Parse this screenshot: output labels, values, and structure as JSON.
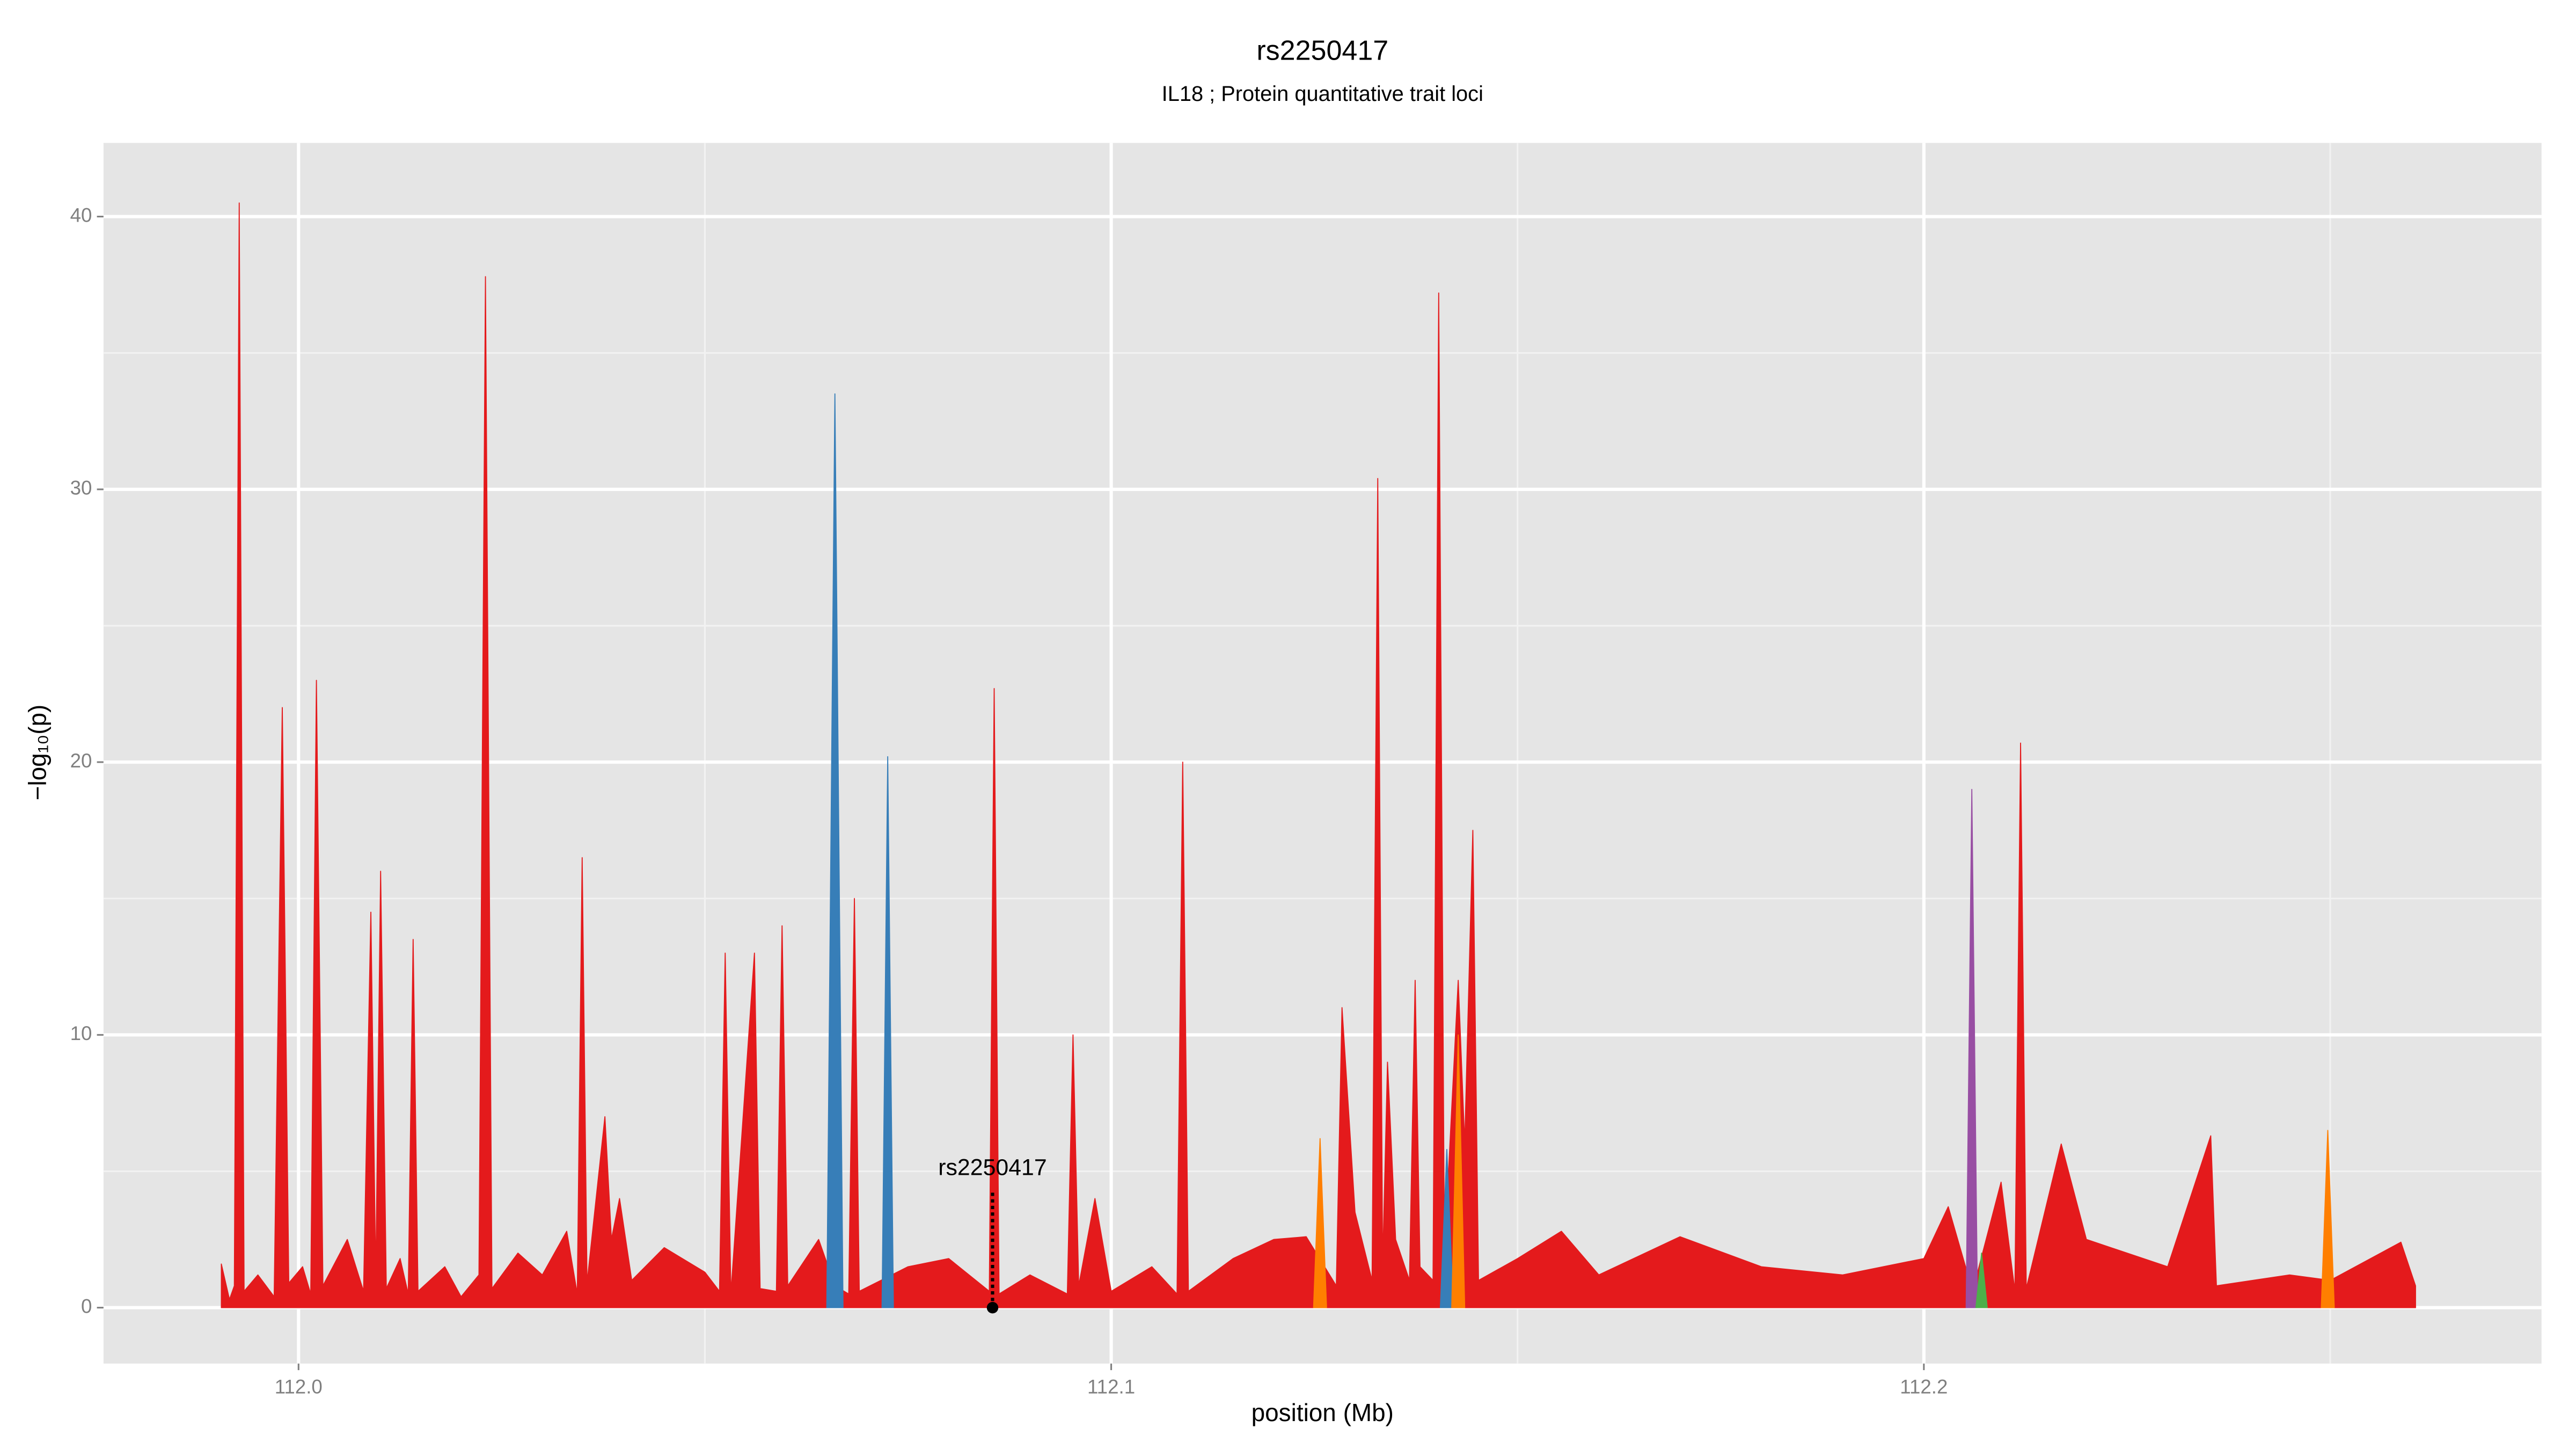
{
  "chart_data": {
    "type": "area",
    "title": "rs2250417",
    "subtitle": "IL18 ; Protein quantitative trait loci",
    "x_label": "position (Mb)",
    "y_label": "−log₁₀(p)",
    "xlim": [
      111.976,
      112.276
    ],
    "ylim": [
      -2.05,
      42.7
    ],
    "xticks": [
      {
        "value": 112,
        "label": "112.0"
      },
      112.1,
      112.2
    ],
    "yticks": [
      0,
      10,
      20,
      30,
      40
    ],
    "x_minor_grid": [
      112.05,
      112.15,
      112.25
    ],
    "y_minor_grid": [
      5,
      15,
      25,
      35
    ],
    "grid": true,
    "background": "#e5e5e5",
    "annotation": {
      "text": "rs2250417",
      "x": 112.0854,
      "y": 0,
      "y_end": 4.3
    },
    "series": [
      {
        "color": "#e41a1c",
        "x": [
          111.9905,
          111.9915,
          111.9921,
          111.9927,
          111.9933,
          111.995,
          111.997,
          111.998,
          111.9988,
          112.0005,
          112.0015,
          112.0022,
          112.003,
          112.006,
          112.008,
          112.0089,
          112.0095,
          112.0101,
          112.0108,
          112.0125,
          112.0135,
          112.0141,
          112.0147,
          112.018,
          112.02,
          112.0222,
          112.023,
          112.0238,
          112.027,
          112.03,
          112.033,
          112.0343,
          112.0349,
          112.0355,
          112.0377,
          112.0385,
          112.0395,
          112.041,
          112.045,
          112.05,
          112.0518,
          112.0525,
          112.0532,
          112.0561,
          112.0568,
          112.0588,
          112.0595,
          112.0602,
          112.064,
          112.066,
          112.0677,
          112.0684,
          112.069,
          112.075,
          112.08,
          112.085,
          112.0856,
          112.0862,
          112.09,
          112.0946,
          112.0953,
          112.096,
          112.098,
          112.1,
          112.105,
          112.1081,
          112.1088,
          112.1095,
          112.115,
          112.12,
          112.124,
          112.1277,
          112.1284,
          112.13,
          112.1321,
          112.1328,
          112.1334,
          112.134,
          112.135,
          112.1367,
          112.1374,
          112.138,
          112.1396,
          112.1403,
          112.141,
          112.1427,
          112.1435,
          112.1445,
          112.1452,
          112.15,
          112.1554,
          112.16,
          112.17,
          112.18,
          112.19,
          112.2,
          112.203,
          112.206,
          112.2095,
          112.2112,
          112.2119,
          112.2126,
          112.2169,
          112.22,
          112.23,
          112.2353,
          112.236,
          112.245,
          112.25,
          112.2587,
          112.2605
        ],
        "values": [
          1.6,
          0.3,
          0.8,
          40.5,
          0.6,
          1.2,
          0.4,
          22,
          0.9,
          1.5,
          0.5,
          23,
          0.8,
          2.5,
          0.6,
          14.5,
          1,
          16,
          0.7,
          1.8,
          0.5,
          13.5,
          0.6,
          1.5,
          0.4,
          1.2,
          37.8,
          0.7,
          2,
          1.2,
          2.8,
          0.5,
          16.5,
          0.9,
          7,
          2.5,
          4,
          1,
          2.2,
          1.3,
          0.6,
          13,
          0.5,
          13,
          0.7,
          0.6,
          14,
          0.8,
          2.5,
          0.8,
          0.5,
          15,
          0.6,
          1.5,
          1.8,
          0.6,
          22.7,
          0.5,
          1.2,
          0.5,
          10,
          0.8,
          4,
          0.6,
          1.5,
          0.5,
          20,
          0.6,
          1.8,
          2.5,
          2.6,
          0.8,
          11,
          3.5,
          1,
          30.4,
          1.5,
          9,
          2.5,
          1,
          12,
          1.5,
          1,
          37.2,
          2,
          12,
          6,
          17.5,
          1,
          1.8,
          2.8,
          1.2,
          2.6,
          1.5,
          1.2,
          1.8,
          3.7,
          0.6,
          4.6,
          0.6,
          20.7,
          0.7,
          6,
          2.5,
          1.5,
          6.3,
          0.8,
          1.2,
          1,
          2.4,
          0.8
        ]
      },
      {
        "color": "#377eb8",
        "x": [
          112.065,
          112.066,
          112.067,
          112.07,
          112.0718,
          112.0725,
          112.0732,
          112.1,
          112.1405,
          112.1413,
          112.1421
        ],
        "values": [
          0,
          33.5,
          0,
          null,
          0,
          20.2,
          0,
          null,
          0,
          5.8,
          0
        ]
      },
      {
        "color": "#ff7f00",
        "x": [
          112.1249,
          112.1257,
          112.1265,
          112.13,
          112.1419,
          112.1427,
          112.1435,
          112.2,
          112.2489,
          112.2497,
          112.2505
        ],
        "values": [
          0,
          6.2,
          0,
          null,
          0,
          10,
          0,
          null,
          0,
          6.5,
          0
        ]
      },
      {
        "color": "#984ea3",
        "x": [
          112.2052,
          112.2059,
          112.2066
        ],
        "values": [
          0,
          19,
          0
        ]
      },
      {
        "color": "#4daf4a",
        "x": [
          112.2064,
          112.2071,
          112.2078
        ],
        "values": [
          0,
          2,
          0
        ]
      }
    ]
  }
}
